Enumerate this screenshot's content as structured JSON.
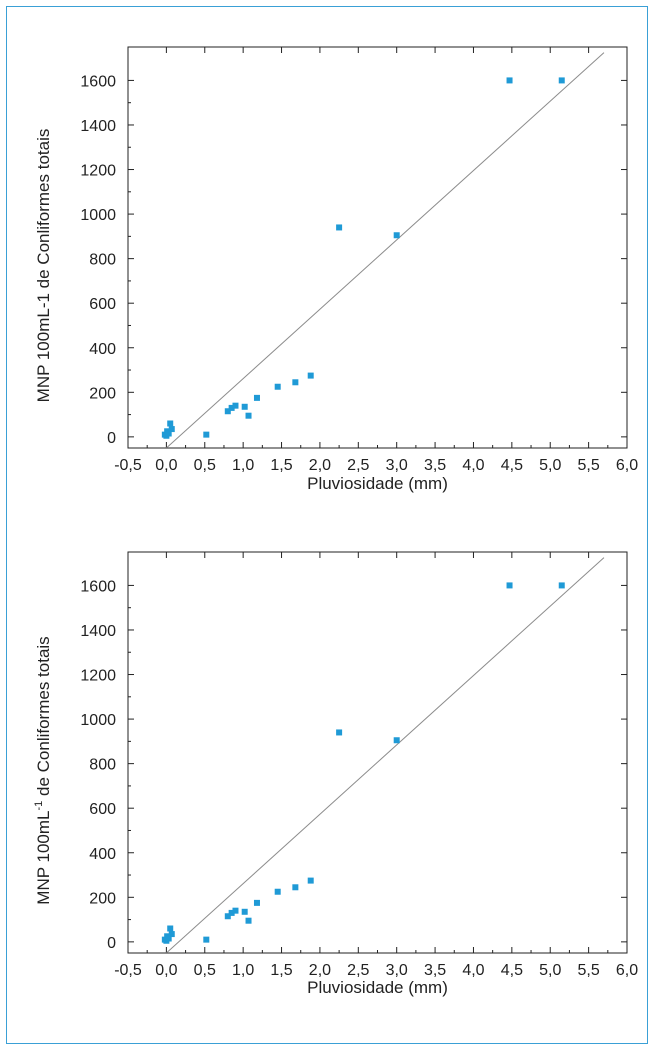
{
  "colors": {
    "frame_border": "#3aa0d6",
    "marker": "#1f9ad6",
    "fit_line": "#8c8c8c",
    "axis": "#222222"
  },
  "chart_data": [
    {
      "type": "scatter",
      "xlabel": "Pluviosidade (mm)",
      "ylabel": "MNP 100mL-1 de Conliformes totais",
      "xlim": [
        -0.5,
        6.0
      ],
      "ylim": [
        -50,
        1750
      ],
      "x_ticks": [
        -0.5,
        0.0,
        0.5,
        1.0,
        1.5,
        2.0,
        2.5,
        3.0,
        3.5,
        4.0,
        4.5,
        5.0,
        5.5,
        6.0
      ],
      "x_tick_labels": [
        "-0,5",
        "0,0",
        "0,5",
        "1,0",
        "1,5",
        "2,0",
        "2,5",
        "3,0",
        "3,5",
        "4,0",
        "4,5",
        "5,0",
        "5,5",
        "6,0"
      ],
      "y_ticks": [
        0,
        200,
        400,
        600,
        800,
        1000,
        1200,
        1400,
        1600
      ],
      "y_tick_labels": [
        "0",
        "200",
        "400",
        "600",
        "800",
        "1000",
        "1200",
        "1400",
        "1600"
      ],
      "series": [
        {
          "points": [
            [
              -0.02,
              10
            ],
            [
              0.0,
              5
            ],
            [
              0.01,
              25
            ],
            [
              0.03,
              15
            ],
            [
              0.05,
              60
            ],
            [
              0.07,
              35
            ],
            [
              0.52,
              10
            ],
            [
              0.8,
              115
            ],
            [
              0.85,
              130
            ],
            [
              0.9,
              140
            ],
            [
              1.02,
              135
            ],
            [
              1.07,
              95
            ],
            [
              1.18,
              175
            ],
            [
              1.45,
              225
            ],
            [
              1.68,
              245
            ],
            [
              1.88,
              275
            ],
            [
              2.25,
              940
            ],
            [
              3.0,
              905
            ],
            [
              4.47,
              1600
            ],
            [
              5.15,
              1600
            ]
          ]
        }
      ],
      "fit_line": [
        [
          0.0,
          -50
        ],
        [
          5.7,
          1725
        ]
      ]
    },
    {
      "type": "scatter",
      "xlabel": "Pluviosidade (mm)",
      "ylabel": "MNP 100mL",
      "ylabel_superscript": "-1",
      "ylabel_suffix": " de Conliformes totais",
      "xlim": [
        -0.5,
        6.0
      ],
      "ylim": [
        -50,
        1750
      ],
      "x_ticks": [
        -0.5,
        0.0,
        0.5,
        1.0,
        1.5,
        2.0,
        2.5,
        3.0,
        3.5,
        4.0,
        4.5,
        5.0,
        5.5,
        6.0
      ],
      "x_tick_labels": [
        "-0,5",
        "0,0",
        "0,5",
        "1,0",
        "1,5",
        "2,0",
        "2,5",
        "3,0",
        "3,5",
        "4,0",
        "4,5",
        "5,0",
        "5,5",
        "6,0"
      ],
      "y_ticks": [
        0,
        200,
        400,
        600,
        800,
        1000,
        1200,
        1400,
        1600
      ],
      "y_tick_labels": [
        "0",
        "200",
        "400",
        "600",
        "800",
        "1000",
        "1200",
        "1400",
        "1600"
      ],
      "series": [
        {
          "points": [
            [
              -0.02,
              10
            ],
            [
              0.0,
              5
            ],
            [
              0.01,
              25
            ],
            [
              0.03,
              15
            ],
            [
              0.05,
              60
            ],
            [
              0.07,
              35
            ],
            [
              0.52,
              10
            ],
            [
              0.8,
              115
            ],
            [
              0.85,
              130
            ],
            [
              0.9,
              140
            ],
            [
              1.02,
              135
            ],
            [
              1.07,
              95
            ],
            [
              1.18,
              175
            ],
            [
              1.45,
              225
            ],
            [
              1.68,
              245
            ],
            [
              1.88,
              275
            ],
            [
              2.25,
              940
            ],
            [
              3.0,
              905
            ],
            [
              4.47,
              1600
            ],
            [
              5.15,
              1600
            ]
          ]
        }
      ],
      "fit_line": [
        [
          0.0,
          -50
        ],
        [
          5.7,
          1725
        ]
      ]
    }
  ]
}
